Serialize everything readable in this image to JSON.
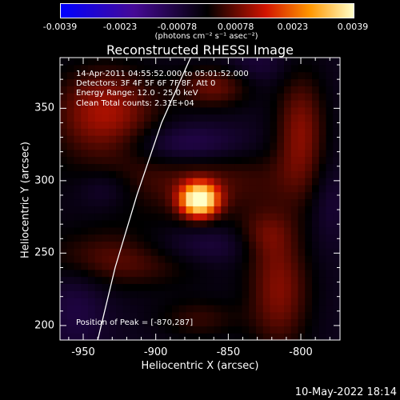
{
  "colorbar": {
    "ticks": [
      "-0.0039",
      "-0.0023",
      "-0.00078",
      "0.00078",
      "0.0023",
      "0.0039"
    ],
    "units": "(photons cm⁻² s⁻¹ asec⁻²)"
  },
  "chart_data": {
    "type": "heatmap",
    "title": "Reconstructed RHESSI Image",
    "xlabel": "Heliocentric X (arcsec)",
    "ylabel": "Heliocentric Y (arcsec)",
    "xlim": [
      -966,
      -773
    ],
    "ylim": [
      190,
      385
    ],
    "x_ticks": [
      -950,
      -900,
      -850,
      -800
    ],
    "y_ticks": [
      200,
      250,
      300,
      350
    ],
    "x_tick_labels": [
      "-950",
      "-900",
      "-850",
      "-800"
    ],
    "y_tick_labels": [
      "200",
      "250",
      "300",
      "350"
    ],
    "color_range": [
      -0.0039,
      0.0039
    ],
    "peak": {
      "x": -870,
      "y": 287
    },
    "features": [
      {
        "x": -870,
        "y": 287,
        "sx": 9,
        "sy": 8,
        "amp": 0.0045
      },
      {
        "x": -935,
        "y": 347,
        "sx": 25,
        "sy": 22,
        "amp": 0.0016
      },
      {
        "x": -860,
        "y": 365,
        "sx": 18,
        "sy": 10,
        "amp": 0.0011
      },
      {
        "x": -870,
        "y": 300,
        "sx": 55,
        "sy": 18,
        "amp": 0.0009
      },
      {
        "x": -800,
        "y": 335,
        "sx": 12,
        "sy": 28,
        "amp": 0.0013
      },
      {
        "x": -922,
        "y": 248,
        "sx": 40,
        "sy": 14,
        "amp": 0.0012
      },
      {
        "x": -825,
        "y": 262,
        "sx": 14,
        "sy": 12,
        "amp": 0.0008
      },
      {
        "x": -815,
        "y": 225,
        "sx": 15,
        "sy": 30,
        "amp": 0.0013
      },
      {
        "x": -870,
        "y": 205,
        "sx": 20,
        "sy": 10,
        "amp": 0.0007
      },
      {
        "x": -880,
        "y": 325,
        "sx": 30,
        "sy": 10,
        "amp": -0.0009
      },
      {
        "x": -875,
        "y": 255,
        "sx": 35,
        "sy": 10,
        "amp": -0.0008
      },
      {
        "x": -935,
        "y": 295,
        "sx": 14,
        "sy": 10,
        "amp": -0.0006
      },
      {
        "x": -955,
        "y": 215,
        "sx": 15,
        "sy": 25,
        "amp": -0.0005
      },
      {
        "x": -780,
        "y": 290,
        "sx": 10,
        "sy": 20,
        "amp": -0.0005
      },
      {
        "x": -830,
        "y": 380,
        "sx": 15,
        "sy": 10,
        "amp": -0.0004
      }
    ],
    "limb_curve": [
      [
        -940,
        190
      ],
      [
        -928,
        240
      ],
      [
        -913,
        290
      ],
      [
        -896,
        340
      ],
      [
        -876,
        385
      ]
    ],
    "info_lines": [
      "14-Apr-2011 04:55:52.000 to 05:01:52.000",
      "Detectors: 3F 4F 5F 6F 7F 8F, Att 0",
      "Energy Range: 12.0 - 25.0 keV",
      "Clean      Total counts: 2.31E+04"
    ],
    "peak_label": "Position of Peak = [-870,287]"
  },
  "timestamp": "10-May-2022 18:14"
}
